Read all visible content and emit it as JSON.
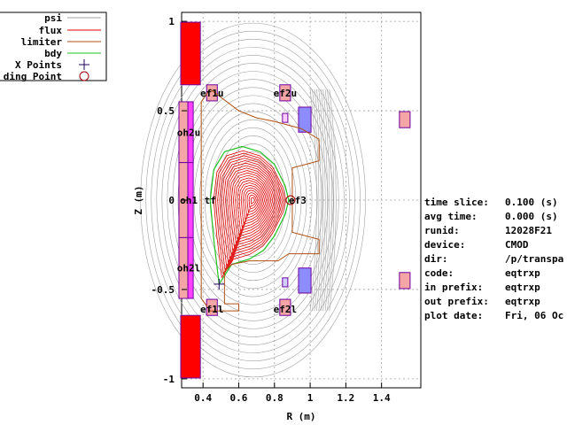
{
  "chart_data": {
    "type": "line",
    "xlabel": "R (m)",
    "ylabel": "Z (m)",
    "xlim": [
      0.28,
      1.62
    ],
    "ylim": [
      -1.05,
      1.05
    ],
    "x_ticks": [
      "0.4",
      "0.6",
      "0.8",
      "1",
      "1.2",
      "1.4"
    ],
    "x_tick_values": [
      0.4,
      0.6,
      0.8,
      1.0,
      1.2,
      1.4
    ],
    "y_ticks": [
      "1",
      "0.5",
      "0",
      "-0.5",
      "-1"
    ],
    "y_tick_values": [
      1,
      0.5,
      0,
      -0.5,
      -1
    ],
    "grid": true,
    "legend_placement": "top-left, outside",
    "legend": [
      {
        "label": "psi",
        "color": "#a0a0a0",
        "kind": "line"
      },
      {
        "label": "flux",
        "color": "#e00000",
        "kind": "line"
      },
      {
        "label": "limiter",
        "color": "#b05010",
        "kind": "line"
      },
      {
        "label": "bdy",
        "color": "#20c020",
        "kind": "line"
      },
      {
        "label": "X Points",
        "color": "#200060",
        "kind": "plus"
      },
      {
        "label": "ding Point",
        "color": "#a00000",
        "kind": "circle"
      }
    ],
    "magnetic_axis": {
      "R": 0.68,
      "Z": 0.0
    },
    "x_point": {
      "R": 0.49,
      "Z": -0.47
    },
    "coil_labels": [
      {
        "text": "ef1u",
        "R": 0.45,
        "Z": 0.6
      },
      {
        "text": "ef2u",
        "R": 0.86,
        "Z": 0.6
      },
      {
        "text": "oh2u",
        "R": 0.32,
        "Z": 0.38
      },
      {
        "text": "oh1",
        "R": 0.32,
        "Z": 0.0
      },
      {
        "text": "tf",
        "R": 0.44,
        "Z": 0.0
      },
      {
        "text": "ef3",
        "R": 0.93,
        "Z": 0.0
      },
      {
        "text": "oh2l",
        "R": 0.32,
        "Z": -0.38
      },
      {
        "text": "ef1l",
        "R": 0.45,
        "Z": -0.61
      },
      {
        "text": "ef2l",
        "R": 0.86,
        "Z": -0.61
      }
    ],
    "boundary": [
      [
        0.44,
        0.0
      ],
      [
        0.46,
        0.17
      ],
      [
        0.52,
        0.27
      ],
      [
        0.62,
        0.3
      ],
      [
        0.72,
        0.27
      ],
      [
        0.8,
        0.2
      ],
      [
        0.86,
        0.08
      ],
      [
        0.88,
        0.0
      ],
      [
        0.86,
        -0.08
      ],
      [
        0.8,
        -0.2
      ],
      [
        0.74,
        -0.28
      ],
      [
        0.66,
        -0.33
      ],
      [
        0.56,
        -0.36
      ],
      [
        0.49,
        -0.47
      ],
      [
        0.46,
        -0.22
      ],
      [
        0.44,
        0.0
      ]
    ],
    "limiter": [
      [
        0.39,
        0.55
      ],
      [
        0.39,
        -0.55
      ],
      [
        0.44,
        -0.62
      ],
      [
        0.6,
        -0.62
      ],
      [
        0.6,
        -0.58
      ],
      [
        0.52,
        -0.58
      ],
      [
        0.52,
        -0.4
      ],
      [
        0.56,
        -0.36
      ],
      [
        0.66,
        -0.34
      ],
      [
        0.82,
        -0.34
      ],
      [
        0.88,
        -0.3
      ],
      [
        1.05,
        -0.3
      ],
      [
        1.05,
        -0.22
      ],
      [
        0.9,
        -0.18
      ],
      [
        0.9,
        0.18
      ],
      [
        1.05,
        0.22
      ],
      [
        1.05,
        0.34
      ],
      [
        0.95,
        0.4
      ],
      [
        0.8,
        0.44
      ],
      [
        0.7,
        0.46
      ],
      [
        0.6,
        0.5
      ],
      [
        0.44,
        0.62
      ],
      [
        0.39,
        0.55
      ]
    ]
  },
  "info_panel": [
    {
      "key": "time slice:",
      "value": "0.100 (s)"
    },
    {
      "key": "avg time:",
      "value": "0.000 (s)"
    },
    {
      "key": "runid:",
      "value": "12028F21"
    },
    {
      "key": "device:",
      "value": "CMOD"
    },
    {
      "key": "dir:",
      "value": "/p/transpa"
    },
    {
      "key": "code:",
      "value": "eqtrxp"
    },
    {
      "key": "in  prefix:",
      "value": "eqtrxp"
    },
    {
      "key": "out prefix:",
      "value": "eqtrxp"
    },
    {
      "key": "plot date:",
      "value": "Fri, 06 Oc"
    }
  ],
  "colors": {
    "psi": "#a0a0a0",
    "flux": "#e00000",
    "limiter": "#b05010",
    "bdy": "#20c020",
    "xpoint": "#200060",
    "touch": "#a00000",
    "coil_red": "#ff0000",
    "coil_pink": "#f4a6a6",
    "coil_magenta": "#ff40ff",
    "coil_blue": "#8c8cff",
    "coil_edge": "#7000a0",
    "grid": "#a0a0a0"
  }
}
